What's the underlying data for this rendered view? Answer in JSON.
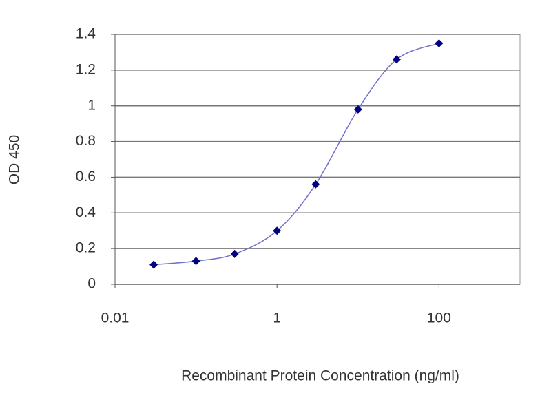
{
  "chart_data": {
    "type": "line",
    "x_label": "Recombinant Protein Concentration (ng/ml)",
    "y_label": "OD 450",
    "x": [
      0.03,
      0.1,
      0.3,
      1,
      3,
      10,
      30,
      100
    ],
    "series": [
      {
        "name": "OD 450",
        "color": "#000080",
        "line_color": "#6f6fd0",
        "values": [
          0.11,
          0.13,
          0.17,
          0.3,
          0.56,
          0.98,
          1.26,
          1.35
        ]
      }
    ],
    "xlim": [
      0.01,
      1000
    ],
    "xticks": [
      0.01,
      1,
      100
    ],
    "xscale": "log",
    "ylim": [
      0,
      1.4
    ],
    "yticks": [
      0,
      0.2,
      0.4,
      0.6,
      0.8,
      1,
      1.2,
      1.4
    ],
    "grid": true
  }
}
